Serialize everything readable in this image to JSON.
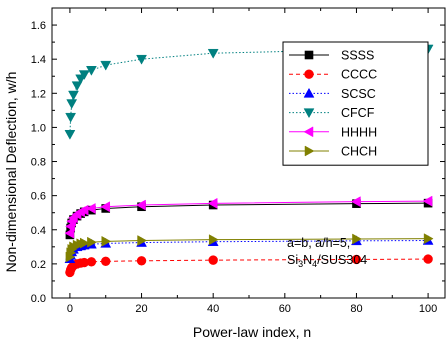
{
  "chart_data": {
    "type": "line",
    "xlabel": "Power-law index, n",
    "ylabel": "Non-dimensional Deflection, w/h",
    "xlim": [
      -5,
      105
    ],
    "ylim": [
      0.0,
      1.7
    ],
    "xticks": [
      0,
      20,
      40,
      60,
      80,
      100
    ],
    "yticks": [
      0.0,
      0.2,
      0.4,
      0.6,
      0.8,
      1.0,
      1.2,
      1.4,
      1.6
    ],
    "ytick_labels": [
      "0.0",
      "0.2",
      "0.4",
      "0.6",
      "0.8",
      "1.0",
      "1.2",
      "1.4",
      "1.6"
    ],
    "grid": false,
    "legend_position": "top-right",
    "x": [
      0,
      0.2,
      0.5,
      1,
      2,
      3,
      4,
      6,
      10,
      20,
      40,
      80,
      100
    ],
    "series": [
      {
        "name": "SSSS",
        "color": "#000000",
        "marker": "square",
        "line": "solid",
        "values": [
          0.37,
          0.41,
          0.44,
          0.46,
          0.48,
          0.495,
          0.505,
          0.515,
          0.525,
          0.535,
          0.545,
          0.553,
          0.556
        ]
      },
      {
        "name": "CCCC",
        "color": "#ff0000",
        "marker": "circle",
        "line": "dashed",
        "values": [
          0.15,
          0.165,
          0.178,
          0.19,
          0.2,
          0.205,
          0.208,
          0.212,
          0.215,
          0.218,
          0.222,
          0.226,
          0.228
        ]
      },
      {
        "name": "SCSC",
        "color": "#0000ff",
        "marker": "triangle-up",
        "line": "dotted",
        "values": [
          0.23,
          0.25,
          0.27,
          0.285,
          0.3,
          0.305,
          0.31,
          0.315,
          0.32,
          0.325,
          0.33,
          0.335,
          0.337
        ]
      },
      {
        "name": "CFCF",
        "color": "#008080",
        "marker": "triangle-down",
        "line": "dotted",
        "values": [
          0.96,
          1.06,
          1.14,
          1.19,
          1.245,
          1.285,
          1.31,
          1.335,
          1.365,
          1.4,
          1.435,
          1.455,
          1.46
        ]
      },
      {
        "name": "HHHH",
        "color": "#ff00ff",
        "marker": "triangle-left",
        "line": "solid",
        "values": [
          0.38,
          0.42,
          0.45,
          0.47,
          0.49,
          0.505,
          0.515,
          0.525,
          0.535,
          0.545,
          0.555,
          0.565,
          0.568
        ]
      },
      {
        "name": "CHCH",
        "color": "#808000",
        "marker": "triangle-right",
        "line": "solid",
        "values": [
          0.24,
          0.265,
          0.285,
          0.3,
          0.31,
          0.318,
          0.322,
          0.327,
          0.332,
          0.337,
          0.342,
          0.346,
          0.348
        ]
      }
    ],
    "annotations": {
      "line1": "a=b, a/h=5,",
      "line2_pre": "Si",
      "line2_sub1": "3",
      "line2_mid": "N",
      "line2_sub2": "4",
      "line2_post": "/SUS304"
    }
  }
}
